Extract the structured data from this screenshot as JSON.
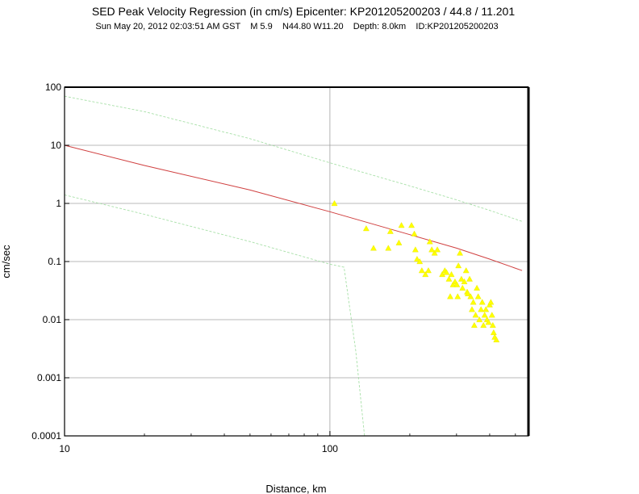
{
  "chart_data": {
    "type": "scatter",
    "title": "SED Peak Velocity Regression (in cm/s) Epicenter: KP201205200203 / 44.8 / 11.201",
    "subtitle": "Sun May 20, 2012 02:03:51 AM GST    M 5.9    N44.80 W11.20    Depth: 8.0km    ID:KP201205200203",
    "xlabel": "Distance, km",
    "ylabel": "cm/sec",
    "x_scale": "log",
    "y_scale": "log",
    "xlim": [
      10,
      560
    ],
    "ylim": [
      0.0001,
      100
    ],
    "x_ticks": [
      "10",
      "100"
    ],
    "y_ticks": [
      "0.0001",
      "0.001",
      "0.01",
      "0.1",
      "1",
      "10",
      "100"
    ],
    "grid": true,
    "colors": {
      "regression": "#d04040",
      "bounds": "#a8e0a8",
      "points": "#ffff00"
    },
    "lines": [
      {
        "role": "regression",
        "x": [
          10,
          20,
          50,
          100,
          200,
          300,
          400,
          530
        ],
        "y": [
          10,
          4.5,
          1.7,
          0.72,
          0.29,
          0.17,
          0.11,
          0.07
        ]
      },
      {
        "role": "upper-bound",
        "x": [
          10,
          20,
          50,
          100,
          200,
          300,
          400,
          530
        ],
        "y": [
          70,
          38,
          13,
          5.0,
          2.0,
          1.15,
          0.76,
          0.49
        ]
      },
      {
        "role": "lower-bound",
        "x": [
          10,
          20,
          50,
          100,
          113,
          125,
          135
        ],
        "y": [
          1.4,
          0.65,
          0.22,
          0.09,
          0.08,
          0.003,
          0.0001
        ]
      }
    ],
    "points": [
      [
        104,
        1.0
      ],
      [
        137,
        0.37
      ],
      [
        146,
        0.17
      ],
      [
        166,
        0.17
      ],
      [
        169,
        0.33
      ],
      [
        182,
        0.21
      ],
      [
        186,
        0.42
      ],
      [
        203,
        0.42
      ],
      [
        208,
        0.3
      ],
      [
        210,
        0.16
      ],
      [
        213,
        0.11
      ],
      [
        218,
        0.1
      ],
      [
        222,
        0.07
      ],
      [
        229,
        0.06
      ],
      [
        235,
        0.07
      ],
      [
        238,
        0.22
      ],
      [
        242,
        0.16
      ],
      [
        248,
        0.14
      ],
      [
        254,
        0.16
      ],
      [
        265,
        0.06
      ],
      [
        271,
        0.07
      ],
      [
        275,
        0.065
      ],
      [
        281,
        0.05
      ],
      [
        284,
        0.025
      ],
      [
        287,
        0.06
      ],
      [
        291,
        0.04
      ],
      [
        296,
        0.045
      ],
      [
        301,
        0.04
      ],
      [
        303,
        0.025
      ],
      [
        305,
        0.085
      ],
      [
        309,
        0.14
      ],
      [
        313,
        0.05
      ],
      [
        316,
        0.035
      ],
      [
        321,
        0.045
      ],
      [
        326,
        0.07
      ],
      [
        329,
        0.03
      ],
      [
        331,
        0.028
      ],
      [
        336,
        0.05
      ],
      [
        339,
        0.025
      ],
      [
        343,
        0.015
      ],
      [
        347,
        0.02
      ],
      [
        350,
        0.008
      ],
      [
        354,
        0.012
      ],
      [
        358,
        0.035
      ],
      [
        362,
        0.025
      ],
      [
        366,
        0.01
      ],
      [
        371,
        0.015
      ],
      [
        375,
        0.02
      ],
      [
        379,
        0.008
      ],
      [
        383,
        0.012
      ],
      [
        387,
        0.015
      ],
      [
        391,
        0.01
      ],
      [
        396,
        0.009
      ],
      [
        400,
        0.018
      ],
      [
        404,
        0.02
      ],
      [
        408,
        0.012
      ],
      [
        411,
        0.008
      ],
      [
        414,
        0.006
      ],
      [
        418,
        0.005
      ],
      [
        424,
        0.0045
      ]
    ]
  }
}
